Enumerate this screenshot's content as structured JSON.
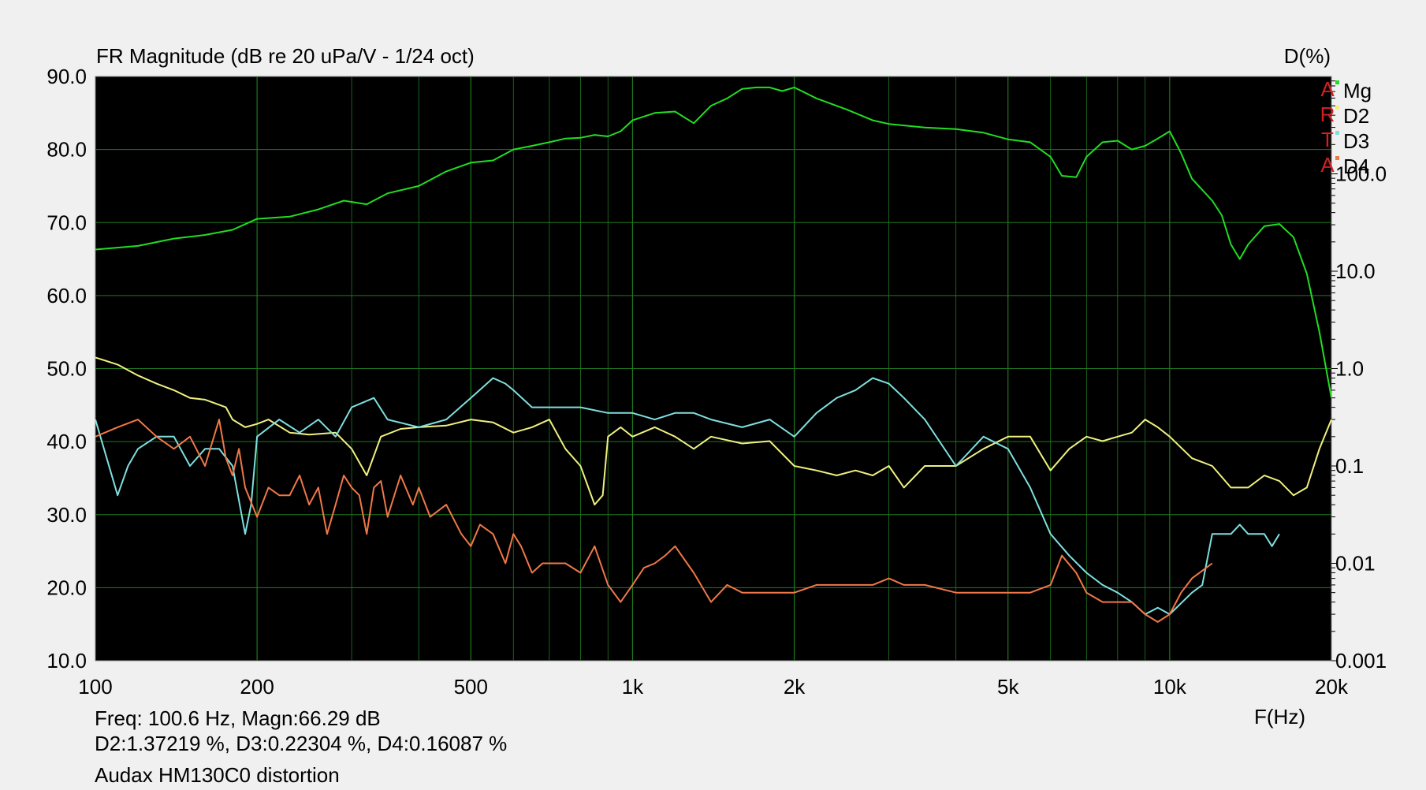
{
  "chart_data": {
    "type": "line",
    "title": "FR Magnitude (dB re 20 uPa/V - 1/24 oct)",
    "y2label": "D(%)",
    "xlabel": "F(Hz)",
    "x_scale": "log",
    "xlim": [
      100,
      20000
    ],
    "ylim": [
      10,
      90
    ],
    "y2_scale": "log",
    "y2lim": [
      0.001,
      1000
    ],
    "x_ticks": [
      {
        "v": 100,
        "label": "100"
      },
      {
        "v": 200,
        "label": "200"
      },
      {
        "v": 500,
        "label": "500"
      },
      {
        "v": 1000,
        "label": "1k"
      },
      {
        "v": 2000,
        "label": "2k"
      },
      {
        "v": 5000,
        "label": "5k"
      },
      {
        "v": 10000,
        "label": "10k"
      },
      {
        "v": 20000,
        "label": "20k"
      }
    ],
    "y_ticks": [
      "90.0",
      "80.0",
      "70.0",
      "60.0",
      "50.0",
      "40.0",
      "30.0",
      "20.0",
      "10.0"
    ],
    "y2_ticks": [
      {
        "v": 100,
        "label": "100.0"
      },
      {
        "v": 10,
        "label": "10.0"
      },
      {
        "v": 1,
        "label": "1.0"
      },
      {
        "v": 0.1,
        "label": "0.1"
      },
      {
        "v": 0.01,
        "label": "0.01"
      },
      {
        "v": 0.001,
        "label": "0.001"
      }
    ],
    "grid": true,
    "legend_position": "top-right",
    "legend_marker_text": "ARTA",
    "series": [
      {
        "name": "Mg",
        "axis": "left",
        "color": "#22dd22",
        "x": [
          100,
          120,
          140,
          160,
          180,
          200,
          230,
          260,
          290,
          320,
          350,
          400,
          450,
          500,
          550,
          600,
          650,
          700,
          750,
          800,
          850,
          900,
          950,
          1000,
          1100,
          1200,
          1300,
          1400,
          1500,
          1600,
          1700,
          1800,
          1900,
          2000,
          2200,
          2500,
          2800,
          3000,
          3500,
          4000,
          4500,
          5000,
          5500,
          6000,
          6300,
          6700,
          7000,
          7500,
          8000,
          8500,
          9000,
          9500,
          10000,
          10500,
          11000,
          12000,
          12500,
          13000,
          13500,
          14000,
          15000,
          16000,
          17000,
          18000,
          19000,
          20000
        ],
        "y": [
          66.3,
          66.8,
          67.8,
          68.3,
          69,
          70.5,
          70.8,
          71.8,
          73,
          72.5,
          74,
          75,
          77,
          78.2,
          78.5,
          80,
          80.5,
          81,
          81.5,
          81.6,
          82,
          81.8,
          82.5,
          84,
          85,
          85.2,
          83.6,
          86,
          87,
          88.3,
          88.5,
          88.5,
          88,
          88.5,
          87,
          85.5,
          84,
          83.5,
          83,
          82.8,
          82.3,
          81.4,
          81,
          79,
          76.4,
          76.2,
          79,
          81,
          81.2,
          80,
          80.5,
          81.5,
          82.5,
          79.5,
          76,
          73,
          71,
          67,
          65,
          67,
          69.5,
          69.8,
          68,
          63,
          55,
          46
        ]
      },
      {
        "name": "D2",
        "axis": "right",
        "color": "#f0f080",
        "x": [
          100,
          110,
          120,
          130,
          140,
          150,
          160,
          175,
          180,
          190,
          200,
          210,
          230,
          250,
          280,
          300,
          320,
          340,
          370,
          400,
          450,
          500,
          550,
          600,
          650,
          700,
          750,
          800,
          850,
          880,
          900,
          950,
          1000,
          1100,
          1200,
          1300,
          1400,
          1600,
          1800,
          2000,
          2200,
          2400,
          2600,
          2800,
          3000,
          3200,
          3500,
          4000,
          4500,
          5000,
          5500,
          6000,
          6500,
          7000,
          7500,
          8000,
          8500,
          9000,
          9500,
          10000,
          11000,
          12000,
          13000,
          14000,
          15000,
          16000,
          17000,
          18000,
          19000,
          20000
        ],
        "y": [
          1.3,
          1.1,
          0.85,
          0.7,
          0.6,
          0.5,
          0.48,
          0.4,
          0.3,
          0.25,
          0.27,
          0.3,
          0.22,
          0.21,
          0.22,
          0.15,
          0.08,
          0.2,
          0.24,
          0.25,
          0.26,
          0.3,
          0.28,
          0.22,
          0.25,
          0.3,
          0.15,
          0.1,
          0.04,
          0.05,
          0.2,
          0.25,
          0.2,
          0.25,
          0.2,
          0.15,
          0.2,
          0.17,
          0.18,
          0.1,
          0.09,
          0.08,
          0.09,
          0.08,
          0.1,
          0.06,
          0.1,
          0.1,
          0.15,
          0.2,
          0.2,
          0.09,
          0.15,
          0.2,
          0.18,
          0.2,
          0.22,
          0.3,
          0.25,
          0.2,
          0.12,
          0.1,
          0.06,
          0.06,
          0.08,
          0.07,
          0.05,
          0.06,
          0.15,
          0.3
        ]
      },
      {
        "name": "D3",
        "axis": "right",
        "color": "#7fdfdf",
        "x": [
          100,
          105,
          110,
          115,
          120,
          130,
          140,
          150,
          160,
          170,
          180,
          190,
          195,
          200,
          220,
          240,
          260,
          280,
          300,
          330,
          350,
          400,
          450,
          500,
          550,
          580,
          600,
          650,
          700,
          800,
          900,
          1000,
          1100,
          1200,
          1300,
          1400,
          1600,
          1800,
          2000,
          2200,
          2400,
          2600,
          2800,
          3000,
          3200,
          3500,
          4000,
          4500,
          5000,
          5500,
          6000,
          6500,
          7000,
          7500,
          8000,
          8500,
          9000,
          9500,
          10000,
          11000,
          11500,
          12000,
          13000,
          13500,
          14000,
          15000,
          15500,
          16000
        ],
        "y": [
          0.3,
          0.12,
          0.05,
          0.1,
          0.15,
          0.2,
          0.2,
          0.1,
          0.15,
          0.15,
          0.1,
          0.02,
          0.04,
          0.2,
          0.3,
          0.22,
          0.3,
          0.2,
          0.4,
          0.5,
          0.3,
          0.25,
          0.3,
          0.5,
          0.8,
          0.7,
          0.6,
          0.4,
          0.4,
          0.4,
          0.35,
          0.35,
          0.3,
          0.35,
          0.35,
          0.3,
          0.25,
          0.3,
          0.2,
          0.35,
          0.5,
          0.6,
          0.8,
          0.7,
          0.5,
          0.3,
          0.1,
          0.2,
          0.15,
          0.06,
          0.02,
          0.012,
          0.008,
          0.006,
          0.005,
          0.004,
          0.003,
          0.0035,
          0.003,
          0.005,
          0.006,
          0.02,
          0.02,
          0.025,
          0.02,
          0.02,
          0.015,
          0.02
        ]
      },
      {
        "name": "D4",
        "axis": "right",
        "color": "#f07848",
        "x": [
          100,
          110,
          120,
          130,
          140,
          150,
          160,
          170,
          175,
          180,
          185,
          190,
          200,
          210,
          220,
          230,
          240,
          250,
          260,
          270,
          280,
          290,
          300,
          310,
          320,
          330,
          340,
          350,
          370,
          390,
          400,
          420,
          450,
          480,
          500,
          520,
          550,
          580,
          600,
          620,
          650,
          680,
          700,
          750,
          800,
          850,
          900,
          950,
          1000,
          1050,
          1100,
          1150,
          1200,
          1300,
          1400,
          1500,
          1600,
          1800,
          2000,
          2200,
          2400,
          2600,
          2800,
          3000,
          3200,
          3500,
          4000,
          4500,
          5000,
          5500,
          6000,
          6300,
          6700,
          7000,
          7500,
          8000,
          8500,
          9000,
          9500,
          10000,
          10500,
          11000,
          12000
        ],
        "y": [
          0.2,
          0.25,
          0.3,
          0.2,
          0.15,
          0.2,
          0.1,
          0.3,
          0.12,
          0.08,
          0.15,
          0.06,
          0.03,
          0.06,
          0.05,
          0.05,
          0.08,
          0.04,
          0.06,
          0.02,
          0.04,
          0.08,
          0.06,
          0.05,
          0.02,
          0.06,
          0.07,
          0.03,
          0.08,
          0.04,
          0.06,
          0.03,
          0.04,
          0.02,
          0.015,
          0.025,
          0.02,
          0.01,
          0.02,
          0.015,
          0.008,
          0.01,
          0.01,
          0.01,
          0.008,
          0.015,
          0.006,
          0.004,
          0.006,
          0.009,
          0.01,
          0.012,
          0.015,
          0.008,
          0.004,
          0.006,
          0.005,
          0.005,
          0.005,
          0.006,
          0.006,
          0.006,
          0.006,
          0.007,
          0.006,
          0.006,
          0.005,
          0.005,
          0.005,
          0.005,
          0.006,
          0.012,
          0.008,
          0.005,
          0.004,
          0.004,
          0.004,
          0.003,
          0.0025,
          0.003,
          0.005,
          0.007,
          0.01
        ]
      }
    ]
  },
  "readout": {
    "line1": "Freq: 100.6 Hz, Magn:66.29 dB",
    "line2": "D2:1.37219 %, D3:0.22304 %, D4:0.16087 %",
    "line3": "Audax HM130C0 distortion"
  }
}
